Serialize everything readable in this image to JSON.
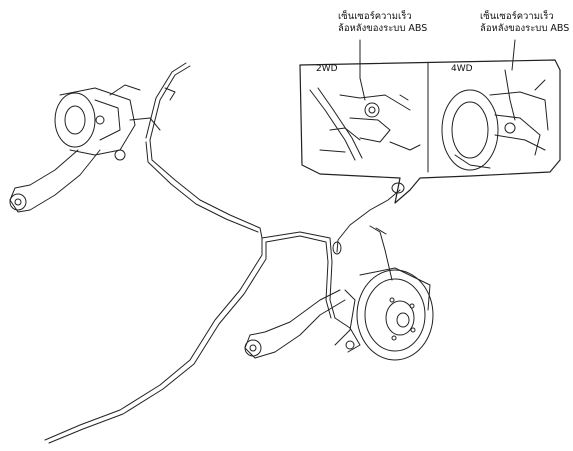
{
  "callouts": {
    "left": {
      "line1": "เซ็นเซอร์ความเร็ว",
      "line2": "ล้อหลังของระบบ ABS"
    },
    "right": {
      "line1": "เซ็นเซอร์ความเร็ว",
      "line2": "ล้อหลังของระบบ ABS"
    }
  },
  "inset": {
    "panel_2wd": "2WD",
    "panel_4wd": "4WD"
  }
}
